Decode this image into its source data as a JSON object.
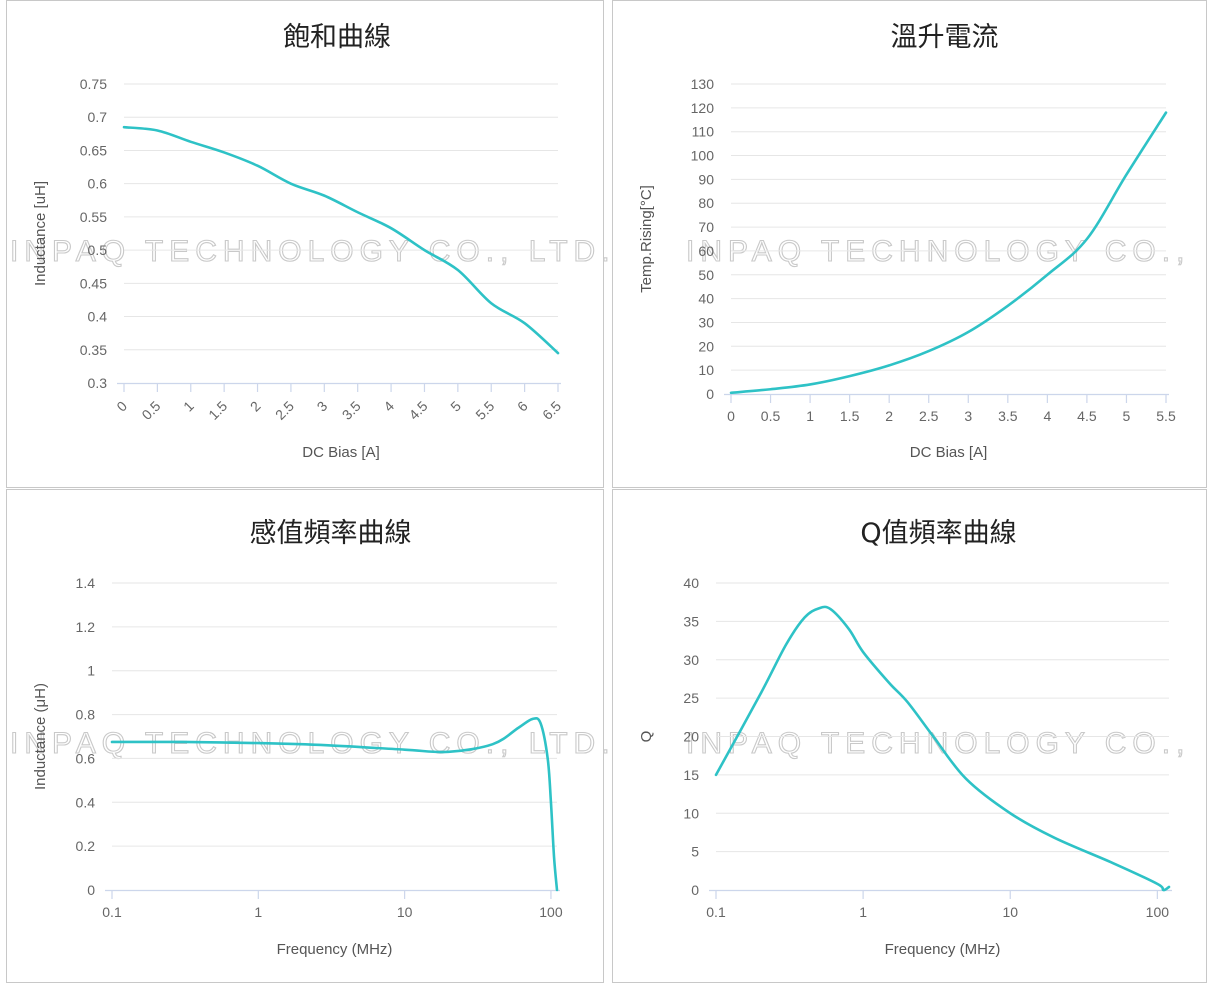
{
  "watermark": {
    "text": "INPAQ TECHNOLOGY CO., LTD."
  },
  "colors": {
    "series": "#2ec2c6",
    "grid": "#e6e6e6",
    "axis": "#ccd6eb",
    "border": "#c8c8c8"
  },
  "chart_data": [
    {
      "type": "line",
      "title": "飽和曲線",
      "xlabel": "DC Bias [A]",
      "ylabel": "Inductance [uH]",
      "xlim": [
        0,
        6.5
      ],
      "ylim": [
        0.3,
        0.75
      ],
      "xscale": "linear",
      "xticks": [
        "0",
        "0.5",
        "1",
        "1.5",
        "2",
        "2.5",
        "3",
        "3.5",
        "4",
        "4.5",
        "5",
        "5.5",
        "6",
        "6.5"
      ],
      "yticks": [
        "0.3",
        "0.35",
        "0.4",
        "0.45",
        "0.5",
        "0.55",
        "0.6",
        "0.65",
        "0.7",
        "0.75"
      ],
      "x_tick_rotation": "diagonal",
      "grid": true,
      "series": [
        {
          "x": [
            0,
            0.5,
            1,
            1.5,
            2,
            2.5,
            3,
            3.5,
            4,
            4.5,
            5,
            5.5,
            6,
            6.5
          ],
          "y": [
            0.685,
            0.68,
            0.663,
            0.647,
            0.627,
            0.6,
            0.582,
            0.557,
            0.533,
            0.5,
            0.47,
            0.42,
            0.39,
            0.345
          ]
        }
      ]
    },
    {
      "type": "line",
      "title": "溫升電流",
      "xlabel": "DC Bias [A]",
      "ylabel": "Temp.Rising[°C]",
      "xlim": [
        0,
        5.5
      ],
      "ylim": [
        0,
        130
      ],
      "xscale": "linear",
      "xticks": [
        "0",
        "0.5",
        "1",
        "1.5",
        "2",
        "2.5",
        "3",
        "3.5",
        "4",
        "4.5",
        "5",
        "5.5"
      ],
      "yticks": [
        "0",
        "10",
        "20",
        "30",
        "40",
        "50",
        "60",
        "70",
        "80",
        "90",
        "100",
        "110",
        "120",
        "130"
      ],
      "x_tick_rotation": "none",
      "grid": true,
      "series": [
        {
          "x": [
            0,
            0.5,
            1,
            1.5,
            2,
            2.5,
            3,
            3.5,
            4,
            4.5,
            5,
            5.5
          ],
          "y": [
            0.5,
            2,
            4,
            7.5,
            12,
            18,
            26,
            37,
            50,
            65,
            92,
            118
          ]
        }
      ]
    },
    {
      "type": "line",
      "title": "感值頻率曲線",
      "xlabel": "Frequency (MHz)",
      "ylabel": "Inductance (μH)",
      "xlim": [
        0.1,
        110
      ],
      "ylim": [
        0,
        1.4
      ],
      "xscale": "log",
      "xticks": [
        "0.1",
        "1",
        "10",
        "100"
      ],
      "yticks": [
        "0",
        "0.2",
        "0.4",
        "0.6",
        "0.8",
        "1",
        "1.2",
        "1.4"
      ],
      "x_tick_rotation": "none",
      "grid": true,
      "series": [
        {
          "x": [
            0.1,
            0.3,
            1,
            3,
            10,
            20,
            40,
            60,
            75,
            85,
            95,
            100,
            105,
            110
          ],
          "y": [
            0.675,
            0.675,
            0.67,
            0.66,
            0.64,
            0.63,
            0.665,
            0.74,
            0.78,
            0.76,
            0.6,
            0.4,
            0.15,
            0.0
          ]
        }
      ]
    },
    {
      "type": "line",
      "title": "Q值頻率曲線",
      "xlabel": "Frequency (MHz)",
      "ylabel": "Q",
      "xlim": [
        0.1,
        120
      ],
      "ylim": [
        0,
        40
      ],
      "xscale": "log",
      "xticks": [
        "0.1",
        "1",
        "10",
        "100"
      ],
      "yticks": [
        "0",
        "5",
        "10",
        "15",
        "20",
        "25",
        "30",
        "35",
        "40"
      ],
      "x_tick_rotation": "none",
      "grid": true,
      "series": [
        {
          "x": [
            0.1,
            0.2,
            0.3,
            0.4,
            0.5,
            0.6,
            0.8,
            1,
            1.5,
            2,
            3,
            5,
            10,
            20,
            50,
            100,
            110,
            120
          ],
          "y": [
            15,
            25.5,
            32,
            35.5,
            36.7,
            36.6,
            34,
            31,
            27,
            24.5,
            20,
            14.5,
            10,
            6.8,
            3.5,
            0.8,
            0,
            0.4
          ]
        }
      ]
    }
  ]
}
